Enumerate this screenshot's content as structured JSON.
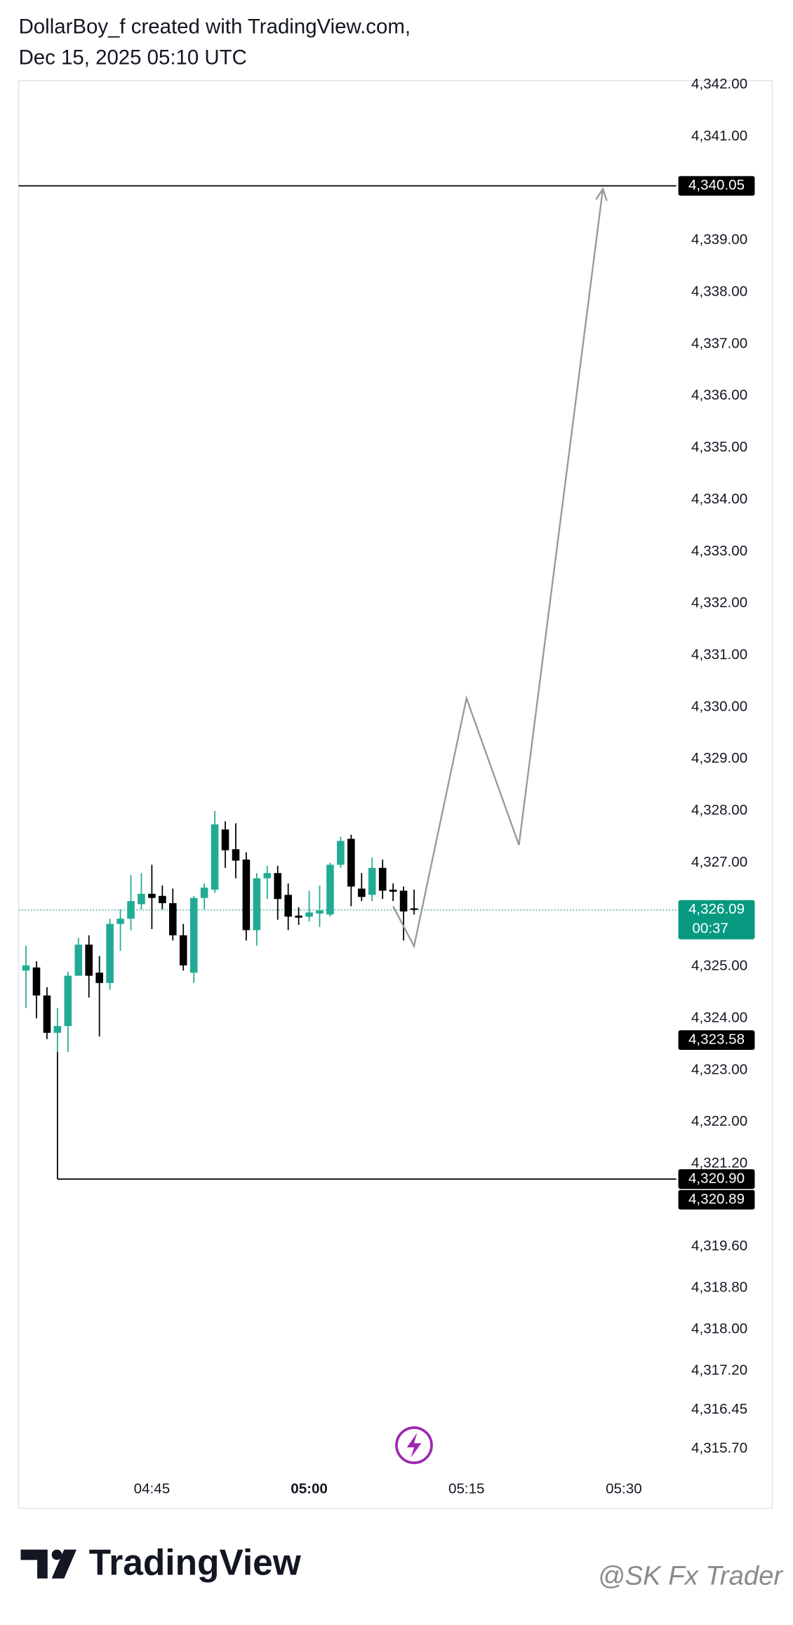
{
  "header": {
    "line1": "DollarBoy_f created with TradingView.com,",
    "line2": "Dec 15, 2025 05:10 UTC"
  },
  "chart_data": {
    "type": "candlestick",
    "up_color": "#22ab94",
    "down_color": "#000000",
    "xlim": [
      272.3,
      335
    ],
    "ylim": [
      4315.25,
      4342.08
    ],
    "xticks": [
      {
        "value": 285,
        "label": "04:45"
      },
      {
        "value": 300,
        "label": "05:00"
      },
      {
        "value": 315,
        "label": "05:15"
      },
      {
        "value": 330,
        "label": "05:30"
      }
    ],
    "yticks": [
      {
        "value": 4342,
        "label": "4,342.00"
      },
      {
        "value": 4341,
        "label": "4,341.00"
      },
      {
        "value": 4340,
        "label": "4,340.00"
      },
      {
        "value": 4339,
        "label": "4,339.00"
      },
      {
        "value": 4338,
        "label": "4,338.00"
      },
      {
        "value": 4337,
        "label": "4,337.00"
      },
      {
        "value": 4336,
        "label": "4,336.00"
      },
      {
        "value": 4335,
        "label": "4,335.00"
      },
      {
        "value": 4334,
        "label": "4,334.00"
      },
      {
        "value": 4333,
        "label": "4,333.00"
      },
      {
        "value": 4332,
        "label": "4,332.00"
      },
      {
        "value": 4331,
        "label": "4,331.00"
      },
      {
        "value": 4330,
        "label": "4,330.00"
      },
      {
        "value": 4329,
        "label": "4,329.00"
      },
      {
        "value": 4328,
        "label": "4,328.00"
      },
      {
        "value": 4327,
        "label": "4,327.00"
      },
      {
        "value": 4326,
        "label": "4,326.00"
      },
      {
        "value": 4325,
        "label": "4,325.00"
      },
      {
        "value": 4324,
        "label": "4,324.00"
      },
      {
        "value": 4323,
        "label": "4,323.00"
      },
      {
        "value": 4322,
        "label": "4,322.00"
      },
      {
        "value": 4321.2,
        "label": "4,321.20"
      },
      {
        "value": 4319.6,
        "label": "4,319.60"
      },
      {
        "value": 4318.8,
        "label": "4,318.80"
      },
      {
        "value": 4318,
        "label": "4,318.00"
      },
      {
        "value": 4317.2,
        "label": "4,317.20"
      },
      {
        "value": 4316.45,
        "label": "4,316.45"
      },
      {
        "value": 4315.7,
        "label": "4,315.70"
      }
    ],
    "x": [
      273,
      274,
      275,
      276,
      277,
      278,
      279,
      280,
      281,
      282,
      283,
      284,
      285,
      286,
      287,
      288,
      289,
      290,
      291,
      292,
      293,
      294,
      295,
      296,
      297,
      298,
      299,
      300,
      301,
      302,
      303,
      304,
      305,
      306,
      307,
      308,
      309,
      310
    ],
    "open": [
      4324.92,
      4324.98,
      4324.44,
      4323.72,
      4323.85,
      4324.82,
      4325.42,
      4324.88,
      4324.68,
      4325.82,
      4325.92,
      4326.2,
      4326.4,
      4326.36,
      4326.22,
      4325.6,
      4324.88,
      4326.32,
      4326.48,
      4327.64,
      4327.26,
      4327.06,
      4325.7,
      4326.7,
      4326.8,
      4326.38,
      4325.98,
      4325.96,
      4326.02,
      4326.0,
      4326.96,
      4327.46,
      4326.5,
      4326.38,
      4326.9,
      4326.48,
      4326.46,
      4326.12
    ],
    "high": [
      4325.4,
      4325.1,
      4324.6,
      4324.2,
      4324.9,
      4325.55,
      4325.6,
      4325.2,
      4325.92,
      4326.1,
      4326.76,
      4326.8,
      4326.96,
      4326.56,
      4326.5,
      4325.82,
      4326.36,
      4326.6,
      4328.0,
      4327.8,
      4327.76,
      4327.2,
      4326.8,
      4326.94,
      4326.94,
      4326.6,
      4326.14,
      4326.46,
      4326.56,
      4327.0,
      4327.5,
      4327.54,
      4326.8,
      4327.1,
      4327.06,
      4326.6,
      4326.54,
      4326.48
    ],
    "low": [
      4324.2,
      4324.0,
      4323.6,
      4323.35,
      4323.35,
      4324.82,
      4324.4,
      4323.65,
      4324.55,
      4325.3,
      4325.7,
      4326.1,
      4325.72,
      4326.1,
      4325.5,
      4324.92,
      4324.68,
      4326.1,
      4326.42,
      4326.9,
      4326.7,
      4325.5,
      4325.4,
      4326.3,
      4325.9,
      4325.7,
      4325.8,
      4325.86,
      4325.76,
      4325.96,
      4326.9,
      4326.16,
      4326.26,
      4326.26,
      4326.3,
      4326.26,
      4325.5,
      4326.0
    ],
    "close": [
      4325.02,
      4324.44,
      4323.72,
      4323.85,
      4324.82,
      4325.42,
      4324.82,
      4324.68,
      4325.82,
      4325.92,
      4326.26,
      4326.4,
      4326.32,
      4326.22,
      4325.6,
      4325.02,
      4326.32,
      4326.52,
      4327.74,
      4327.24,
      4327.04,
      4325.7,
      4326.7,
      4326.8,
      4326.3,
      4325.96,
      4325.94,
      4326.04,
      4326.08,
      4326.96,
      4327.42,
      4326.54,
      4326.34,
      4326.9,
      4326.46,
      4326.44,
      4326.06,
      4326.09
    ],
    "levels": [
      {
        "price": 4340.05,
        "start": 272.3
      },
      {
        "price": 4320.9,
        "start": 276
      }
    ],
    "projection": {
      "color": "#999999",
      "x": [
        308,
        310,
        315,
        320,
        328
      ],
      "y": [
        4326.16,
        4325.39,
        4330.17,
        4327.34,
        4339.99
      ]
    },
    "price_labels": [
      {
        "value": 4340.05,
        "label": "4,340.05",
        "color": "#000000"
      },
      {
        "value": 4326.09,
        "label": "4,326.09",
        "sub": "00:37",
        "color": "#089981"
      },
      {
        "value": 4323.58,
        "label": "4,323.58",
        "color": "#000000"
      },
      {
        "value": 4320.9,
        "label": "4,320.90",
        "color": "#000000"
      },
      {
        "value": 4320.89,
        "label": "4,320.89",
        "color": "#000000"
      }
    ]
  },
  "footer": {
    "logo": "TradingView",
    "watermark": "@SK Fx Trader"
  }
}
